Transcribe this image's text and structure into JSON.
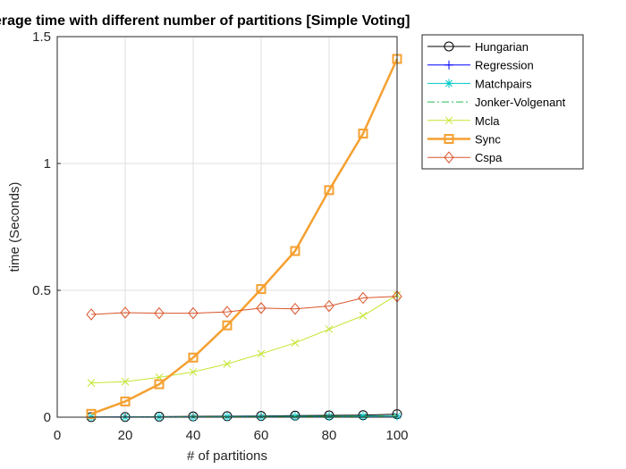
{
  "chart_data": {
    "type": "line",
    "title": "erage time  with different number of partitions [Simple Voting]",
    "xlabel": "# of partitions",
    "ylabel": "time (Seconds)",
    "xlim": [
      0,
      100
    ],
    "ylim": [
      0,
      1.5
    ],
    "xticks": [
      "0",
      "20",
      "40",
      "60",
      "80",
      "100"
    ],
    "yticks": [
      "0",
      "0.5",
      "1",
      "1.5"
    ],
    "grid": true,
    "legend_position": "outside-top-right",
    "x": [
      10,
      20,
      30,
      40,
      50,
      60,
      70,
      80,
      90,
      100
    ],
    "series": [
      {
        "name": "Hungarian",
        "color": "#000000",
        "marker": "circle",
        "line": "solid",
        "values": [
          0.0005,
          0.001,
          0.002,
          0.003,
          0.004,
          0.005,
          0.006,
          0.007,
          0.008,
          0.012
        ]
      },
      {
        "name": "Regression",
        "color": "#0000ff",
        "marker": "plus",
        "line": "solid",
        "values": [
          0.0005,
          0.0008,
          0.001,
          0.0015,
          0.002,
          0.0025,
          0.003,
          0.0035,
          0.004,
          0.005
        ]
      },
      {
        "name": "Matchpairs",
        "color": "#00c8c8",
        "marker": "asterisk",
        "line": "solid",
        "values": [
          0.0005,
          0.0008,
          0.001,
          0.0015,
          0.002,
          0.0025,
          0.003,
          0.0035,
          0.004,
          0.005
        ]
      },
      {
        "name": "Jonker-Volgenant",
        "color": "#22bb55",
        "marker": "none",
        "line": "dashdot",
        "values": [
          0.0005,
          0.0008,
          0.001,
          0.0015,
          0.002,
          0.0025,
          0.003,
          0.0035,
          0.004,
          0.005
        ]
      },
      {
        "name": "Mcla",
        "color": "#c4e632",
        "marker": "x",
        "line": "solid",
        "values": [
          0.135,
          0.14,
          0.157,
          0.178,
          0.21,
          0.25,
          0.293,
          0.347,
          0.4,
          0.482
        ]
      },
      {
        "name": "Sync",
        "color": "#f5a030",
        "marker": "square",
        "line": "solid-thick",
        "values": [
          0.013,
          0.062,
          0.13,
          0.235,
          0.362,
          0.505,
          0.655,
          0.895,
          1.118,
          1.412
        ]
      },
      {
        "name": "Cspa",
        "color": "#d9542a",
        "marker": "diamond",
        "line": "solid",
        "values": [
          0.405,
          0.412,
          0.41,
          0.41,
          0.415,
          0.43,
          0.427,
          0.438,
          0.47,
          0.476
        ]
      }
    ]
  }
}
